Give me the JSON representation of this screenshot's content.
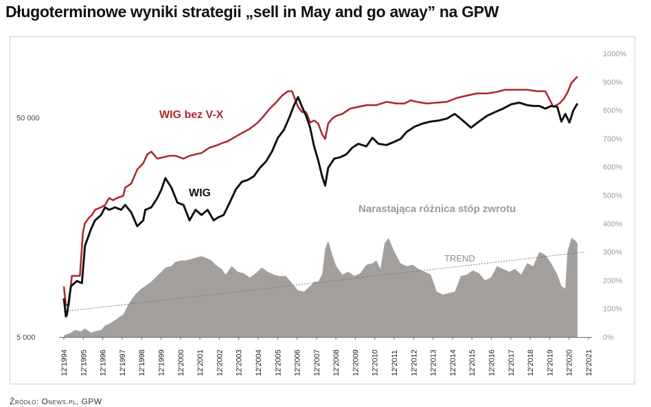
{
  "title": "Długoterminowe wyniki strategii „sell in May and go away” na GPW",
  "source": "Źródło: Onews.pl, GPW",
  "chart_data": {
    "type": "line",
    "title": "Długoterminowe wyniki strategii „sell in May and go away” na GPW",
    "x_labels": [
      "12'1994",
      "12'1995",
      "12'1996",
      "12'1997",
      "12'1998",
      "12'1999",
      "12'2000",
      "12'2001",
      "12'2002",
      "12'2003",
      "12'2004",
      "12'2005",
      "12'2006",
      "12'2007",
      "12'2008",
      "12'2009",
      "12'2010",
      "12'2011",
      "12'2012",
      "12'2013",
      "12'2014",
      "12'2015",
      "12'2016",
      "12'2017",
      "12'2018",
      "12'2019",
      "12'2020",
      "12'2021"
    ],
    "x_range": [
      1994.95,
      2021.05
    ],
    "left_axis": {
      "scale": "log",
      "range": [
        5000,
        98000
      ],
      "ticks": [
        5000,
        50000
      ],
      "tick_labels": [
        "5 000",
        "50 000"
      ]
    },
    "right_axis": {
      "range": [
        0,
        1000
      ],
      "ticks": [
        0,
        100,
        200,
        300,
        400,
        500,
        600,
        700,
        800,
        900,
        1000
      ],
      "tick_labels": [
        "0%",
        "100%",
        "200%",
        "300%",
        "400%",
        "500%",
        "600%",
        "700%",
        "800%",
        "900%",
        "1000%"
      ]
    },
    "series": [
      {
        "name": "WIG bez V-X",
        "axis": "left",
        "color": "#b0282e",
        "x": [
          1994.95,
          1995.05,
          1995.1,
          1995.2,
          1995.35,
          1995.5,
          1995.6,
          1995.75,
          1995.9,
          1996.0,
          1996.2,
          1996.35,
          1996.5,
          1996.8,
          1997.0,
          1997.2,
          1997.4,
          1997.6,
          1997.9,
          1998.0,
          1998.3,
          1998.6,
          1998.9,
          1999.1,
          1999.3,
          1999.6,
          1999.9,
          2000.2,
          2000.5,
          2000.9,
          2001.2,
          2001.5,
          2001.8,
          2002.2,
          2002.6,
          2002.9,
          2003.1,
          2003.4,
          2003.8,
          2004.2,
          2004.6,
          2004.9,
          2005.2,
          2005.5,
          2005.8,
          2006.1,
          2006.3,
          2006.6,
          2006.8,
          2007.0,
          2007.2,
          2007.4,
          2007.6,
          2007.8,
          2007.95,
          2008.1,
          2008.3,
          2008.5,
          2008.8,
          2009.2,
          2009.6,
          2010.0,
          2010.5,
          2011.0,
          2011.5,
          2011.9,
          2012.2,
          2012.5,
          2013.0,
          2013.5,
          2014.0,
          2014.5,
          2015.0,
          2015.5,
          2016.0,
          2016.5,
          2016.9,
          2017.2,
          2017.5,
          2018.0,
          2018.5,
          2018.9,
          2019.3,
          2019.6,
          2019.8,
          2020.0,
          2020.2,
          2020.5
        ],
        "y": [
          8500,
          7000,
          7000,
          7000,
          9500,
          9500,
          9500,
          9500,
          15000,
          16500,
          17500,
          18000,
          19000,
          19500,
          20000,
          21500,
          21000,
          21500,
          22000,
          24000,
          25000,
          29000,
          31000,
          34000,
          35000,
          32500,
          33000,
          33500,
          33500,
          32500,
          33500,
          34000,
          34500,
          36500,
          37500,
          38500,
          39000,
          40500,
          42500,
          44500,
          47500,
          51000,
          55000,
          58500,
          63000,
          66000,
          66000,
          56000,
          53000,
          53000,
          47500,
          48500,
          47000,
          42000,
          40000,
          47000,
          49500,
          51000,
          52000,
          55000,
          56000,
          57000,
          57000,
          59000,
          58000,
          58000,
          60000,
          59000,
          58000,
          58500,
          59000,
          61500,
          63000,
          64500,
          64500,
          65500,
          67000,
          67000,
          67000,
          67000,
          66000,
          66000,
          56000,
          58000,
          60500,
          65000,
          72000,
          77000
        ]
      },
      {
        "name": "WIG",
        "axis": "left",
        "color": "#111111",
        "x": [
          1994.95,
          1995.05,
          1995.1,
          1995.3,
          1995.6,
          1995.85,
          1996.0,
          1996.3,
          1996.5,
          1996.8,
          1997.0,
          1997.2,
          1997.5,
          1997.8,
          1998.0,
          1998.3,
          1998.6,
          1998.9,
          1999.0,
          1999.3,
          1999.6,
          1999.8,
          2000.0,
          2000.3,
          2000.6,
          2000.9,
          2001.2,
          2001.5,
          2001.8,
          2002.1,
          2002.4,
          2002.6,
          2002.9,
          2003.2,
          2003.5,
          2003.8,
          2004.1,
          2004.4,
          2004.7,
          2005.0,
          2005.3,
          2005.6,
          2005.9,
          2006.2,
          2006.4,
          2006.6,
          2006.8,
          2007.0,
          2007.2,
          2007.4,
          2007.6,
          2007.8,
          2007.95,
          2008.1,
          2008.4,
          2008.7,
          2009.0,
          2009.3,
          2009.6,
          2010.0,
          2010.3,
          2010.6,
          2011.0,
          2011.3,
          2011.7,
          2012.0,
          2012.4,
          2012.8,
          2013.2,
          2013.6,
          2014.0,
          2014.4,
          2014.8,
          2015.2,
          2015.6,
          2016.0,
          2016.4,
          2016.8,
          2017.2,
          2017.6,
          2018.0,
          2018.3,
          2018.6,
          2018.9,
          2019.2,
          2019.5,
          2019.7,
          2019.9,
          2020.1,
          2020.3,
          2020.5
        ],
        "y": [
          7500,
          6200,
          6300,
          8500,
          9000,
          8800,
          13000,
          15500,
          17000,
          18000,
          19500,
          19000,
          19500,
          19000,
          20000,
          18500,
          16000,
          17000,
          19000,
          19500,
          21500,
          23500,
          26500,
          24000,
          20500,
          20000,
          17000,
          19000,
          18000,
          19000,
          17000,
          17500,
          18000,
          20500,
          23500,
          25500,
          26000,
          27000,
          29500,
          31500,
          35000,
          40500,
          44000,
          51000,
          57000,
          62000,
          56000,
          51000,
          45000,
          37000,
          32000,
          27000,
          24500,
          29500,
          32500,
          33000,
          34000,
          36500,
          38000,
          37000,
          40500,
          38000,
          37500,
          38500,
          40000,
          43000,
          45500,
          47000,
          48000,
          48500,
          49500,
          52000,
          48500,
          45000,
          48000,
          51000,
          53000,
          55000,
          57500,
          58500,
          57000,
          56500,
          56500,
          55000,
          56500,
          56000,
          48000,
          52000,
          47500,
          54000,
          58000
        ]
      },
      {
        "name": "Narastająca różnica stóp zwrotu",
        "axis": "right",
        "color": "#9e9a97",
        "type": "area",
        "x": [
          1994.95,
          1995.1,
          1995.3,
          1995.5,
          1995.8,
          1996.0,
          1996.3,
          1996.5,
          1996.8,
          1997.0,
          1997.3,
          1997.6,
          1997.9,
          1998.2,
          1998.5,
          1998.8,
          1999.0,
          1999.3,
          1999.5,
          1999.8,
          2000.0,
          2000.3,
          2000.5,
          2000.8,
          2001.0,
          2001.3,
          2001.5,
          2001.8,
          2002.0,
          2002.3,
          2002.5,
          2002.8,
          2003.0,
          2003.3,
          2003.6,
          2003.9,
          2004.2,
          2004.5,
          2004.8,
          2005.1,
          2005.4,
          2005.7,
          2006.0,
          2006.3,
          2006.6,
          2006.9,
          2007.2,
          2007.4,
          2007.6,
          2007.8,
          2007.95,
          2008.1,
          2008.3,
          2008.5,
          2008.8,
          2009.1,
          2009.4,
          2009.7,
          2010.0,
          2010.3,
          2010.5,
          2010.7,
          2010.9,
          2011.1,
          2011.4,
          2011.7,
          2012.0,
          2012.3,
          2012.6,
          2012.9,
          2013.2,
          2013.5,
          2013.8,
          2014.1,
          2014.4,
          2014.7,
          2015.0,
          2015.3,
          2015.6,
          2015.9,
          2016.2,
          2016.5,
          2016.8,
          2017.1,
          2017.4,
          2017.7,
          2018.0,
          2018.3,
          2018.6,
          2018.9,
          2019.2,
          2019.5,
          2019.7,
          2019.9,
          2020.0,
          2020.2,
          2020.4,
          2020.5
        ],
        "y": [
          5,
          10,
          15,
          25,
          20,
          30,
          15,
          20,
          25,
          40,
          50,
          65,
          80,
          120,
          150,
          170,
          180,
          195,
          210,
          230,
          245,
          250,
          265,
          270,
          270,
          275,
          280,
          285,
          280,
          270,
          255,
          240,
          220,
          250,
          230,
          225,
          210,
          225,
          245,
          230,
          220,
          215,
          215,
          190,
          165,
          160,
          180,
          195,
          195,
          220,
          310,
          340,
          290,
          250,
          220,
          230,
          215,
          225,
          255,
          260,
          270,
          240,
          330,
          350,
          300,
          260,
          250,
          255,
          240,
          230,
          220,
          160,
          150,
          155,
          160,
          215,
          220,
          235,
          225,
          200,
          210,
          250,
          240,
          230,
          240,
          220,
          260,
          250,
          300,
          290,
          260,
          220,
          180,
          170,
          300,
          350,
          340,
          330
        ]
      }
    ],
    "trend": {
      "label": "TREND",
      "axis": "right",
      "from": [
        1994.95,
        90
      ],
      "to": [
        2020.9,
        300
      ]
    },
    "annotations": [
      {
        "text": "WIG bez V-X",
        "series": "WIG bez V-X"
      },
      {
        "text": "WIG",
        "series": "WIG"
      },
      {
        "text": "Narastająca różnica stóp zwrotu",
        "series": "Narastająca różnica stóp zwrotu"
      }
    ],
    "grid": false,
    "legend": "inline labels"
  }
}
